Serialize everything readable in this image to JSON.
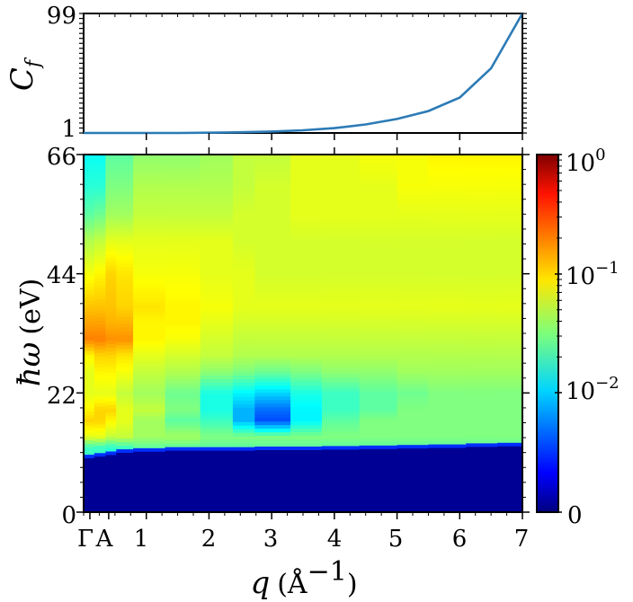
{
  "chart_data": [
    {
      "type": "line",
      "ylabel": "C_f",
      "ylabel_main": "C",
      "ylabel_sub": "f",
      "yticks": [
        1,
        99
      ],
      "ytick_labels": [
        "1",
        "99"
      ],
      "ylim": [
        1,
        99
      ],
      "xlim": [
        0,
        7
      ],
      "line_color": "#2c7bb6",
      "x": [
        0,
        0.5,
        1.0,
        1.5,
        2.0,
        2.5,
        3.0,
        3.5,
        4.0,
        4.5,
        5.0,
        5.5,
        6.0,
        6.5,
        7.0
      ],
      "y": [
        1,
        1,
        1,
        1,
        1.2,
        1.6,
        2.2,
        3.2,
        5,
        8,
        12.5,
        19,
        30,
        54,
        99
      ]
    },
    {
      "type": "heatmap",
      "xlabel": "q",
      "xlabel_unit": "(Å",
      "xlabel_exp": "−1",
      "ylabel": "ħω",
      "ylabel_unit": "(eV)",
      "xlim": [
        0,
        7
      ],
      "ylim": [
        0,
        66
      ],
      "xticks": [
        1,
        2,
        3,
        4,
        5,
        6,
        7
      ],
      "xtick_labels": [
        "1",
        "2",
        "3",
        "4",
        "5",
        "6",
        "7"
      ],
      "special_ticks": [
        {
          "label": "Γ",
          "x": 0.1
        },
        {
          "label": "A",
          "x": 0.4
        }
      ],
      "yticks": [
        0,
        22,
        44,
        66
      ],
      "ytick_labels": [
        "0",
        "22",
        "44",
        "66"
      ],
      "colorbar": {
        "scale": "symlog",
        "ticks": [
          {
            "base": "0",
            "exp": ""
          },
          {
            "base": "10",
            "exp": "−2"
          },
          {
            "base": "10",
            "exp": "−1"
          },
          {
            "base": "10",
            "exp": "0"
          }
        ],
        "colormap": "jet"
      },
      "q_columns": [
        0.0,
        0.17,
        0.35,
        0.52,
        0.79,
        1.3,
        1.86,
        2.38,
        2.73,
        3.3,
        3.8,
        4.4,
        5.0,
        5.5,
        6.1,
        6.6
      ],
      "gap_edge_eV": [
        10,
        10.3,
        10.6,
        11,
        11.2,
        11.4,
        11.4,
        11.4,
        11.5,
        11.5,
        11.6,
        11.7,
        11.8,
        11.9,
        12.1,
        12.2
      ],
      "intensity_profile": "log10 values interpolated between rows",
      "energy_rows_eV": [
        12,
        14,
        17,
        19,
        22,
        26,
        29,
        32,
        35,
        38,
        44,
        50,
        55,
        60,
        66
      ],
      "log10_intensity": [
        [
          -1.7,
          -1.7,
          -1.75,
          -1.7,
          -1.6,
          -1.6,
          -1.6,
          -1.6,
          -1.6,
          -1.6,
          -1.6,
          -1.6,
          -1.6,
          -1.6,
          -1.6,
          -1.6
        ],
        [
          -1.2,
          -1.2,
          -1.3,
          -1.3,
          -1.4,
          -1.4,
          -1.5,
          -1.5,
          -1.5,
          -1.5,
          -1.5,
          -1.5,
          -1.5,
          -1.5,
          -1.5,
          -1.5
        ],
        [
          -1.0,
          -1.0,
          -1.1,
          -1.2,
          -1.4,
          -1.6,
          -1.7,
          -2.1,
          -2.4,
          -1.9,
          -1.6,
          -1.5,
          -1.5,
          -1.5,
          -1.5,
          -1.5
        ],
        [
          -1.1,
          -1.0,
          -1.0,
          -1.2,
          -1.3,
          -1.5,
          -1.8,
          -2.1,
          -2.3,
          -1.9,
          -1.7,
          -1.6,
          -1.5,
          -1.5,
          -1.5,
          -1.5
        ],
        [
          -1.2,
          -1.2,
          -1.2,
          -1.3,
          -1.4,
          -1.55,
          -1.8,
          -1.9,
          -2.0,
          -1.8,
          -1.7,
          -1.6,
          -1.55,
          -1.5,
          -1.5,
          -1.5
        ],
        [
          -1.2,
          -1.1,
          -1.1,
          -1.15,
          -1.3,
          -1.35,
          -1.45,
          -1.5,
          -1.55,
          -1.5,
          -1.45,
          -1.45,
          -1.4,
          -1.4,
          -1.4,
          -1.4
        ],
        [
          -1.1,
          -1.0,
          -1.0,
          -1.05,
          -1.2,
          -1.25,
          -1.3,
          -1.35,
          -1.35,
          -1.35,
          -1.35,
          -1.35,
          -1.35,
          -1.35,
          -1.35,
          -1.35
        ],
        [
          -0.75,
          -0.75,
          -0.8,
          -0.8,
          -1.1,
          -1.15,
          -1.25,
          -1.3,
          -1.3,
          -1.3,
          -1.3,
          -1.3,
          -1.3,
          -1.3,
          -1.3,
          -1.3
        ],
        [
          -0.85,
          -0.85,
          -0.9,
          -0.9,
          -1.1,
          -1.1,
          -1.2,
          -1.25,
          -1.25,
          -1.25,
          -1.25,
          -1.25,
          -1.25,
          -1.25,
          -1.25,
          -1.25
        ],
        [
          -0.95,
          -0.95,
          -0.95,
          -1.0,
          -1.05,
          -1.1,
          -1.15,
          -1.2,
          -1.2,
          -1.2,
          -1.2,
          -1.2,
          -1.2,
          -1.2,
          -1.2,
          -1.2
        ],
        [
          -1.15,
          -1.1,
          -1.0,
          -1.05,
          -1.15,
          -1.15,
          -1.2,
          -1.2,
          -1.25,
          -1.25,
          -1.25,
          -1.25,
          -1.25,
          -1.25,
          -1.25,
          -1.25
        ],
        [
          -1.35,
          -1.3,
          -1.2,
          -1.2,
          -1.2,
          -1.2,
          -1.2,
          -1.25,
          -1.25,
          -1.25,
          -1.25,
          -1.25,
          -1.25,
          -1.25,
          -1.25,
          -1.25
        ],
        [
          -1.6,
          -1.55,
          -1.4,
          -1.4,
          -1.3,
          -1.3,
          -1.3,
          -1.25,
          -1.25,
          -1.2,
          -1.2,
          -1.2,
          -1.2,
          -1.2,
          -1.2,
          -1.2
        ],
        [
          -1.75,
          -1.75,
          -1.5,
          -1.5,
          -1.35,
          -1.35,
          -1.35,
          -1.3,
          -1.25,
          -1.2,
          -1.2,
          -1.2,
          -1.15,
          -1.15,
          -1.15,
          -1.15
        ],
        [
          -1.85,
          -1.85,
          -1.6,
          -1.6,
          -1.45,
          -1.45,
          -1.4,
          -1.3,
          -1.3,
          -1.2,
          -1.2,
          -1.15,
          -1.15,
          -1.1,
          -1.1,
          -1.1
        ]
      ]
    }
  ]
}
